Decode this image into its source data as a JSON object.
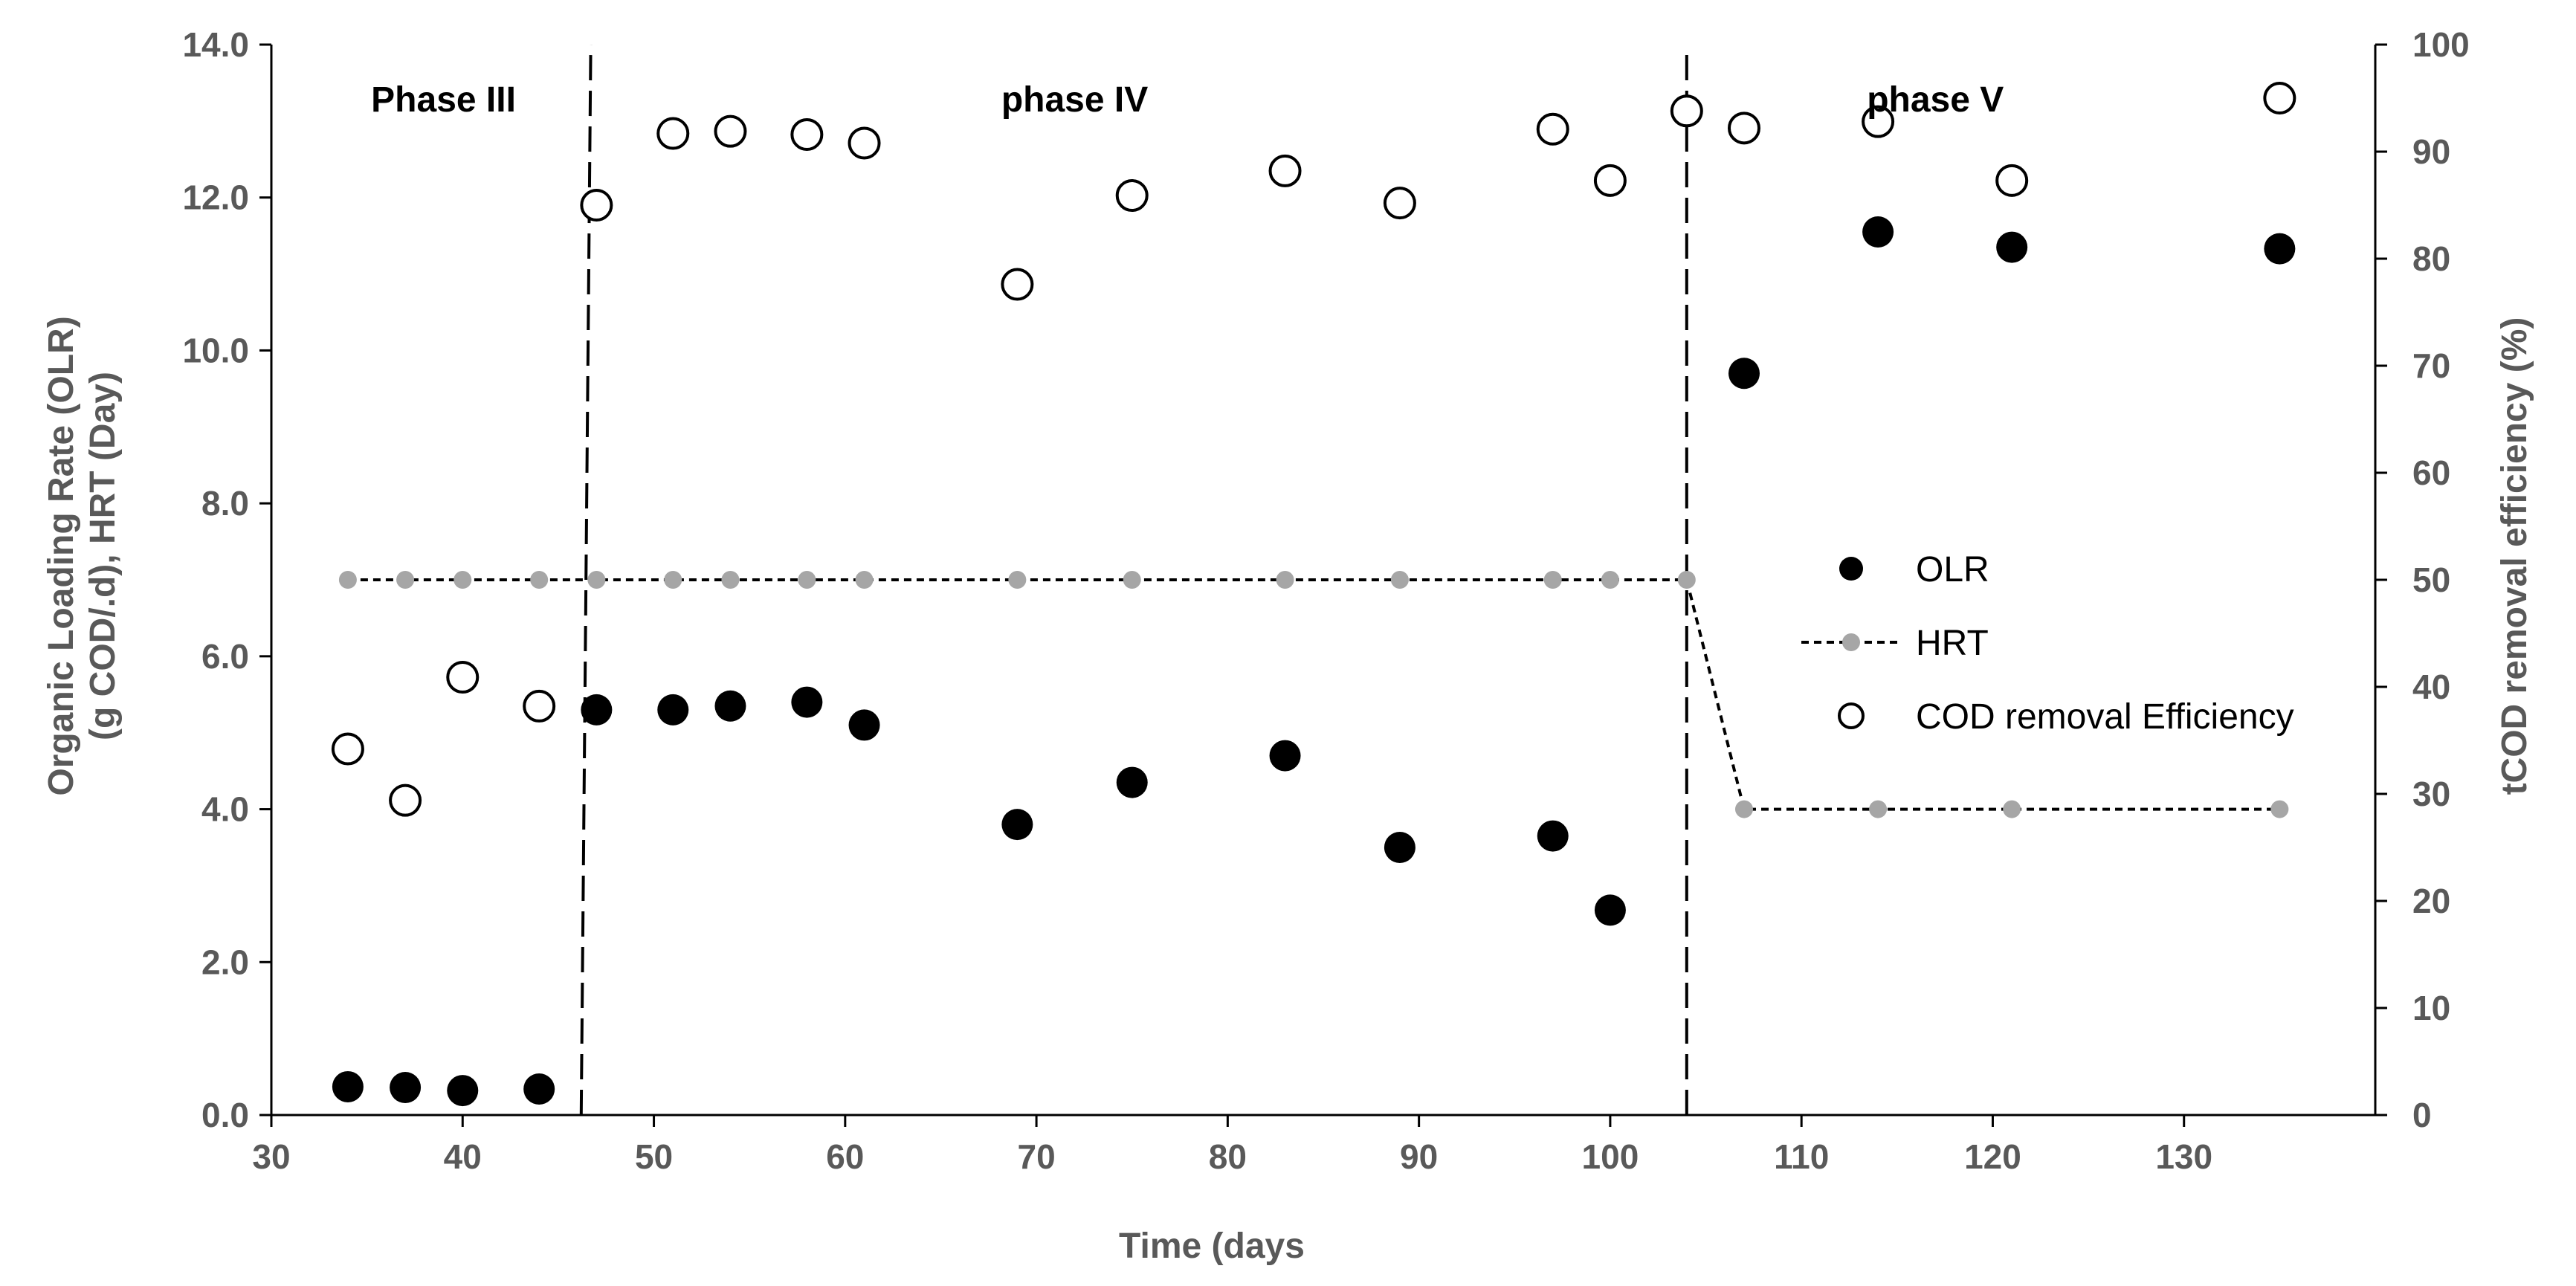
{
  "chart_data": {
    "type": "scatter",
    "xlabel": "Time (days",
    "ylabel_left": [
      "Organic Loading Rate (OLR)",
      "(g COD/.d), HRT (Day)"
    ],
    "ylabel_right": "tCOD removal efficiency (%)",
    "xlim": [
      30,
      140
    ],
    "ylim_left": [
      0,
      14
    ],
    "ylim_right": [
      0,
      100
    ],
    "x_ticks": [
      "30",
      "40",
      "50",
      "60",
      "70",
      "80",
      "90",
      "100",
      "110",
      "120",
      "130"
    ],
    "y_left_ticks": [
      "0.0",
      "2.0",
      "4.0",
      "6.0",
      "8.0",
      "10.0",
      "12.0",
      "14.0"
    ],
    "y_right_ticks": [
      "0",
      "10",
      "20",
      "30",
      "40",
      "50",
      "60",
      "70",
      "80",
      "90",
      "100"
    ],
    "grid": false,
    "legend_position": "right",
    "phases": [
      {
        "label": "Phase III",
        "x": 39
      },
      {
        "label": "phase IV",
        "x": 72
      },
      {
        "label": "phase V",
        "x": 117
      }
    ],
    "phase_boundaries": [
      {
        "x_bottom": 46.2,
        "x_top": 46.7
      },
      {
        "x_bottom": 104,
        "x_top": 104
      }
    ],
    "series": [
      {
        "name": "OLR",
        "axis": "left",
        "style": "filled",
        "color": "#000000",
        "x": [
          34,
          37,
          40,
          44,
          47,
          51,
          54,
          58,
          61,
          69,
          75,
          83,
          89,
          97,
          100,
          107,
          114,
          121,
          135
        ],
        "y": [
          0.37,
          0.36,
          0.32,
          0.34,
          5.3,
          5.3,
          5.35,
          5.4,
          5.1,
          3.8,
          4.35,
          4.7,
          3.5,
          3.65,
          2.68,
          9.7,
          11.55,
          11.35,
          11.33
        ]
      },
      {
        "name": "HRT",
        "axis": "left",
        "style": "line-marker",
        "color": "#a6a6a6",
        "line_color": "#000000",
        "x": [
          34,
          37,
          40,
          44,
          47,
          51,
          54,
          58,
          61,
          69,
          75,
          83,
          89,
          97,
          100,
          104,
          107,
          114,
          121,
          135
        ],
        "y": [
          7,
          7,
          7,
          7,
          7,
          7,
          7,
          7,
          7,
          7,
          7,
          7,
          7,
          7,
          7,
          7,
          4,
          4,
          4,
          4
        ]
      },
      {
        "name": "COD removal Efficiency",
        "axis": "right",
        "style": "hollow",
        "color": "#000000",
        "x": [
          34,
          37,
          40,
          44,
          47,
          51,
          54,
          58,
          61,
          69,
          75,
          83,
          89,
          97,
          100,
          104,
          107,
          114,
          121,
          135
        ],
        "y": [
          34.2,
          29.4,
          40.9,
          38.2,
          85,
          91.7,
          91.9,
          91.6,
          90.8,
          77.6,
          85.9,
          88.2,
          85.2,
          92.1,
          87.3,
          93.8,
          92.2,
          92.8,
          87.3,
          95
        ]
      }
    ]
  }
}
